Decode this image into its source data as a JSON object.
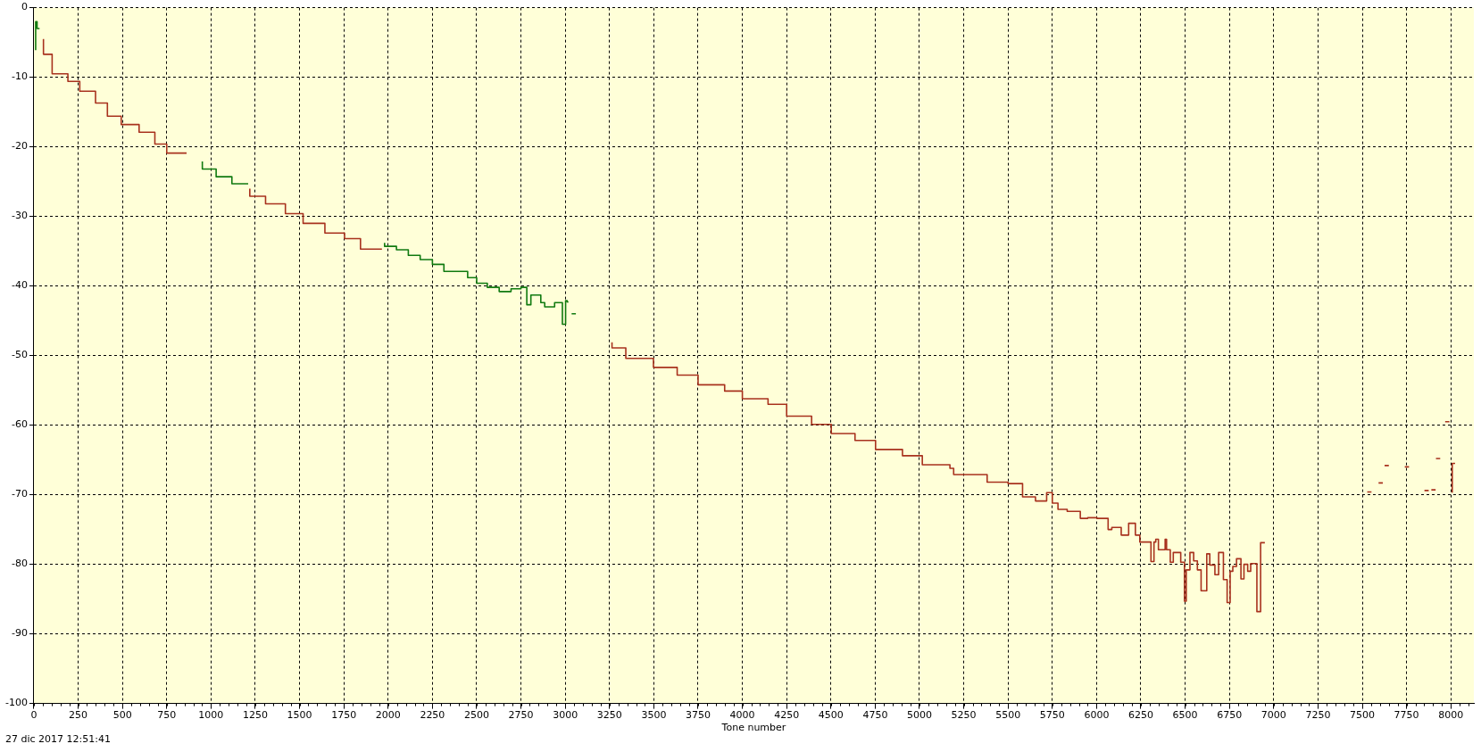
{
  "chart_data": {
    "type": "step",
    "xlabel": "Tone number",
    "annotations": [
      "27 dic 2017 12:51:41"
    ],
    "xlim": [
      0,
      8130
    ],
    "ylim": [
      -100,
      0
    ],
    "xticks": [
      0,
      250,
      500,
      750,
      1000,
      1250,
      1500,
      1750,
      2000,
      2250,
      2500,
      2750,
      3000,
      3250,
      3500,
      3750,
      4000,
      4250,
      4500,
      4750,
      5000,
      5250,
      5500,
      5750,
      6000,
      6250,
      6500,
      6750,
      7000,
      7250,
      7500,
      7750,
      8000
    ],
    "yticks": [
      -100,
      -90,
      -80,
      -70,
      -60,
      -50,
      -40,
      -30,
      -20,
      -10,
      0
    ],
    "grid": true,
    "legend": false,
    "marker": "none",
    "line_style": "solid",
    "series": [
      {
        "color": "#a8321e",
        "x": [
          54,
          103,
          192,
          259,
          348,
          415,
          493,
          594,
          683,
          750,
          850,
          862,
          866,
          1219,
          1308,
          1420,
          1520,
          1643,
          1754,
          1844,
          1955,
          1965,
          1970,
          3264,
          3342,
          3498,
          3632,
          3750,
          3900,
          4000,
          4145,
          4250,
          4391,
          4502,
          4636,
          4752,
          4904,
          5016,
          5172,
          5193,
          5382,
          5500,
          5582,
          5655,
          5718,
          5750,
          5782,
          5834,
          5908,
          5950,
          6002,
          6065,
          6086,
          6139,
          6181,
          6219,
          6244,
          6307,
          6324,
          6334,
          6349,
          6387,
          6395,
          6416,
          6433,
          6475,
          6496,
          6506,
          6527,
          6548,
          6569,
          6590,
          6622,
          6639,
          6668,
          6689,
          6716,
          6737,
          6754,
          6769,
          6790,
          6815,
          6832,
          6853,
          6870,
          6884,
          6905,
          6926,
          6943,
          6950,
          6960,
          7528,
          7552,
          7560,
          7592,
          7616,
          7625,
          7626,
          7650,
          7660,
          7740,
          7764,
          7770,
          7851,
          7875,
          7885,
          7890,
          7914,
          7915,
          7916,
          7940,
          7945,
          7968,
          7992,
          7995,
          8008,
          8016,
          8024
        ],
        "values": [
          -4.5,
          -6.7,
          -9.5,
          -10.6,
          -12,
          -13.7,
          -15.6,
          -16.8,
          -17.9,
          -19.6,
          -20.9,
          -20.9,
          null,
          -26,
          -27.1,
          -28.2,
          -29.6,
          -31,
          -32.4,
          -33.2,
          -34.7,
          -34.7,
          null,
          -48.1,
          -48.9,
          -50.4,
          -51.7,
          -52.8,
          -54.2,
          -55.1,
          -56.2,
          -57,
          -58.7,
          -59.9,
          -61.2,
          -62.2,
          -63.5,
          -64.4,
          -65.7,
          -66.2,
          -67.1,
          -68.2,
          -68.4,
          -70.3,
          -70.9,
          -69.7,
          -71.2,
          -72.1,
          -72.4,
          -73.4,
          -73.3,
          -73.4,
          -75,
          -74.7,
          -75.8,
          -74.1,
          -75.8,
          -76.8,
          -79.6,
          -76.8,
          -76.4,
          -77.9,
          -76.4,
          -77.9,
          -79.7,
          -78.3,
          -79.7,
          -85.3,
          -80.8,
          -78.3,
          -79.5,
          -80.8,
          -83.8,
          -78.5,
          -80.1,
          -81.5,
          -78.3,
          -82.2,
          -85.5,
          -81,
          -80.3,
          -79.2,
          -82.1,
          -80,
          -81,
          -79.9,
          -79.9,
          -86.8,
          -76.9,
          -76.9,
          null,
          -69.6,
          -69.6,
          null,
          -68.3,
          -68.3,
          null,
          -65.8,
          -65.8,
          null,
          -66,
          -66,
          null,
          -69.4,
          -69.4,
          null,
          -69.3,
          -69.3,
          null,
          -64.8,
          -64.8,
          null,
          -59.5,
          -59.5,
          null,
          -69.7,
          -65.5,
          -65.5
        ]
      },
      {
        "color": "#107a10",
        "x": [
          10,
          12,
          18,
          29,
          32,
          873,
          951,
          1029,
          1118,
          1201,
          1210,
          1215,
          1980,
          2047,
          2114,
          2181,
          2250,
          2315,
          2377,
          2449,
          2500,
          2560,
          2627,
          2694,
          2750,
          2783,
          2806,
          2862,
          2884,
          2940,
          2984,
          3002,
          3011,
          3018,
          3025,
          3036,
          3060
        ],
        "values": [
          -6.1,
          -2,
          -2,
          -3,
          -3,
          null,
          -22.1,
          -23.2,
          -24.3,
          -25.3,
          -25.3,
          null,
          -33.8,
          -34.3,
          -34.8,
          -35.6,
          -36.2,
          -36.9,
          -37.9,
          -37.9,
          -38.8,
          -39.6,
          -40.2,
          -40.8,
          -40.4,
          -40.2,
          -42.7,
          -41.3,
          -42.4,
          -43,
          -42.4,
          -45.5,
          -42.1,
          -42.3,
          null,
          -44,
          -44
        ]
      }
    ]
  }
}
